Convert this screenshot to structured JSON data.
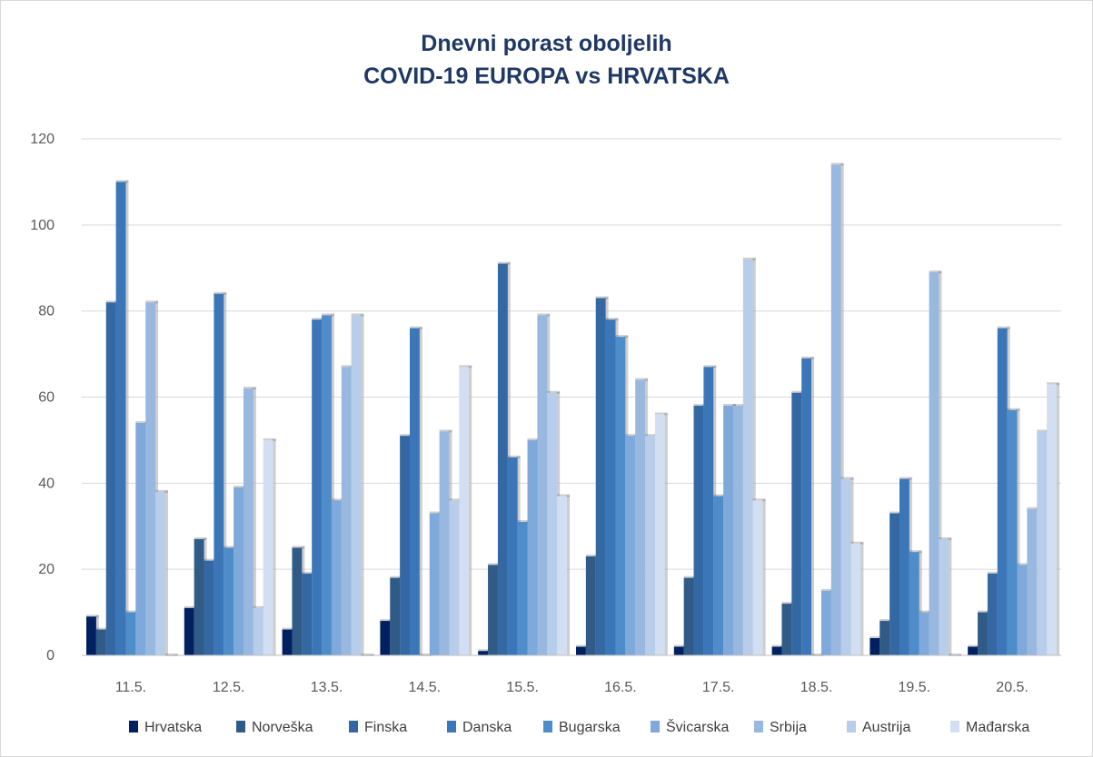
{
  "chart_data": {
    "type": "bar",
    "title": "Dnevni porast oboljelih",
    "subtitle": "COVID-19 EUROPA vs HRVATSKA",
    "xlabel": "",
    "ylabel": "",
    "ylim": [
      0,
      120
    ],
    "yticks": [
      0,
      20,
      40,
      60,
      80,
      100,
      120
    ],
    "grid": true,
    "legend_position": "bottom",
    "categories": [
      "11.5.",
      "12.5.",
      "13.5.",
      "14.5.",
      "15.5.",
      "16.5.",
      "17.5.",
      "18.5.",
      "19.5.",
      "20.5."
    ],
    "series": [
      {
        "name": "Hrvatska",
        "color": "#002060",
        "values": [
          9,
          11,
          6,
          8,
          1,
          2,
          2,
          2,
          4,
          2
        ]
      },
      {
        "name": "Norveška",
        "color": "#2f5b86",
        "values": [
          6,
          27,
          25,
          18,
          21,
          23,
          18,
          12,
          8,
          10
        ]
      },
      {
        "name": "Finska",
        "color": "#3468a3",
        "values": [
          82,
          22,
          19,
          51,
          91,
          83,
          58,
          61,
          33,
          19
        ]
      },
      {
        "name": "Danska",
        "color": "#3b77b8",
        "values": [
          110,
          84,
          78,
          76,
          46,
          78,
          67,
          69,
          41,
          76
        ]
      },
      {
        "name": "Bugarska",
        "color": "#4f8cca",
        "values": [
          10,
          25,
          79,
          0,
          31,
          74,
          37,
          0,
          24,
          57
        ]
      },
      {
        "name": "Švicarska",
        "color": "#7ea9da",
        "values": [
          54,
          39,
          36,
          33,
          50,
          51,
          58,
          15,
          10,
          21
        ]
      },
      {
        "name": "Srbija",
        "color": "#99b8e0",
        "values": [
          82,
          62,
          67,
          52,
          79,
          64,
          58,
          114,
          89,
          34
        ]
      },
      {
        "name": "Austrija",
        "color": "#b8cde9",
        "values": [
          38,
          11,
          79,
          36,
          61,
          51,
          92,
          41,
          27,
          52
        ]
      },
      {
        "name": "Mađarska",
        "color": "#d2def1",
        "values": [
          0,
          50,
          0,
          67,
          37,
          56,
          36,
          26,
          0,
          63
        ]
      }
    ]
  }
}
